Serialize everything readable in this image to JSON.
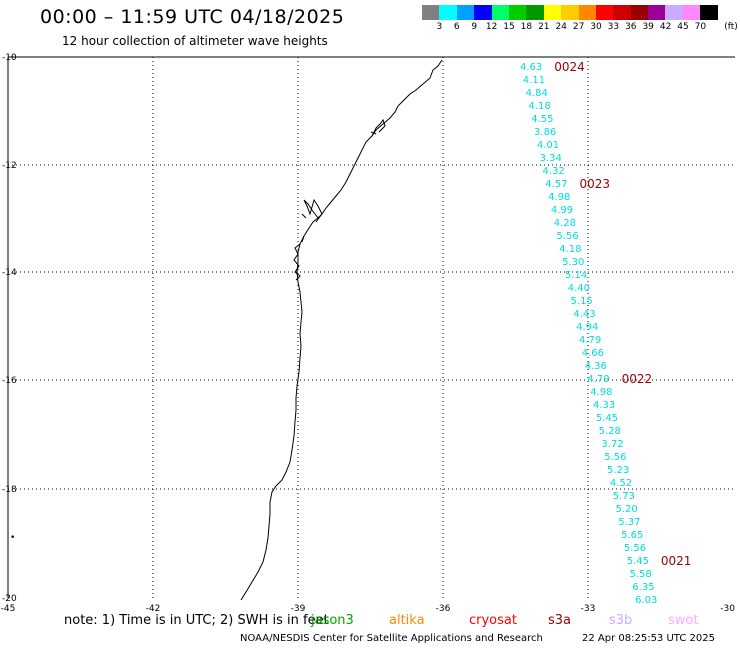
{
  "header": {
    "title": "00:00 – 11:59 UTC 04/18/2025",
    "subtitle": "12 hour collection of altimeter wave heights"
  },
  "scale": {
    "colors": [
      "#808080",
      "#00ffff",
      "#00a0ff",
      "#0000ff",
      "#00ff66",
      "#00cc00",
      "#009900",
      "#ffff00",
      "#ffcc00",
      "#ff8800",
      "#ff0000",
      "#cc0000",
      "#990000",
      "#990099",
      "#ccaaff",
      "#ff88ff",
      "#000000"
    ],
    "labels": [
      "3",
      "6",
      "9",
      "12",
      "15",
      "18",
      "21",
      "24",
      "27",
      "30",
      "33",
      "36",
      "39",
      "42",
      "45",
      "70"
    ],
    "unit": "(ft)"
  },
  "axes": {
    "y_labels": [
      "-10",
      "-12",
      "-14",
      "-16",
      "-18",
      "-20"
    ],
    "x_labels": [
      "-45",
      "-42",
      "-39",
      "-36",
      "-33",
      "-30"
    ]
  },
  "track": {
    "color": "#00dddd",
    "values": [
      "4.63",
      "4.11",
      "4.84",
      "4.18",
      "4.55",
      "3.86",
      "4.01",
      "3.34",
      "4.32",
      "4.57",
      "4.98",
      "4.99",
      "4.28",
      "5.56",
      "4.18",
      "5.30",
      "5.14",
      "4.40",
      "5.15",
      "4.43",
      "4.94",
      "4.79",
      "4.66",
      "4.36",
      "4.79",
      "4.98",
      "4.33",
      "5.45",
      "5.28",
      "3.72",
      "5.56",
      "5.23",
      "4.52",
      "5.73",
      "5.20",
      "5.37",
      "5.65",
      "5.56",
      "5.45",
      "5.58",
      "6.35",
      "6.03"
    ]
  },
  "times": {
    "color": "#990000",
    "labels": [
      "0024",
      "0023",
      "0022",
      "0021"
    ]
  },
  "note": {
    "text": "note: 1) Time is in UTC; 2) SWH is in feet",
    "satellites": [
      {
        "name": "jason3",
        "color": "#00aa00"
      },
      {
        "name": "altika",
        "color": "#ff8800"
      },
      {
        "name": "cryosat",
        "color": "#ff0000"
      },
      {
        "name": "s3a",
        "color": "#990000"
      },
      {
        "name": "s3b",
        "color": "#ccaaff"
      },
      {
        "name": "swot",
        "color": "#ffaaff"
      }
    ]
  },
  "footer": {
    "source": "NOAA/NESDIS Center for Satellite Applications and Research",
    "timestamp": "22 Apr 08:25:53 UTC 2025"
  }
}
